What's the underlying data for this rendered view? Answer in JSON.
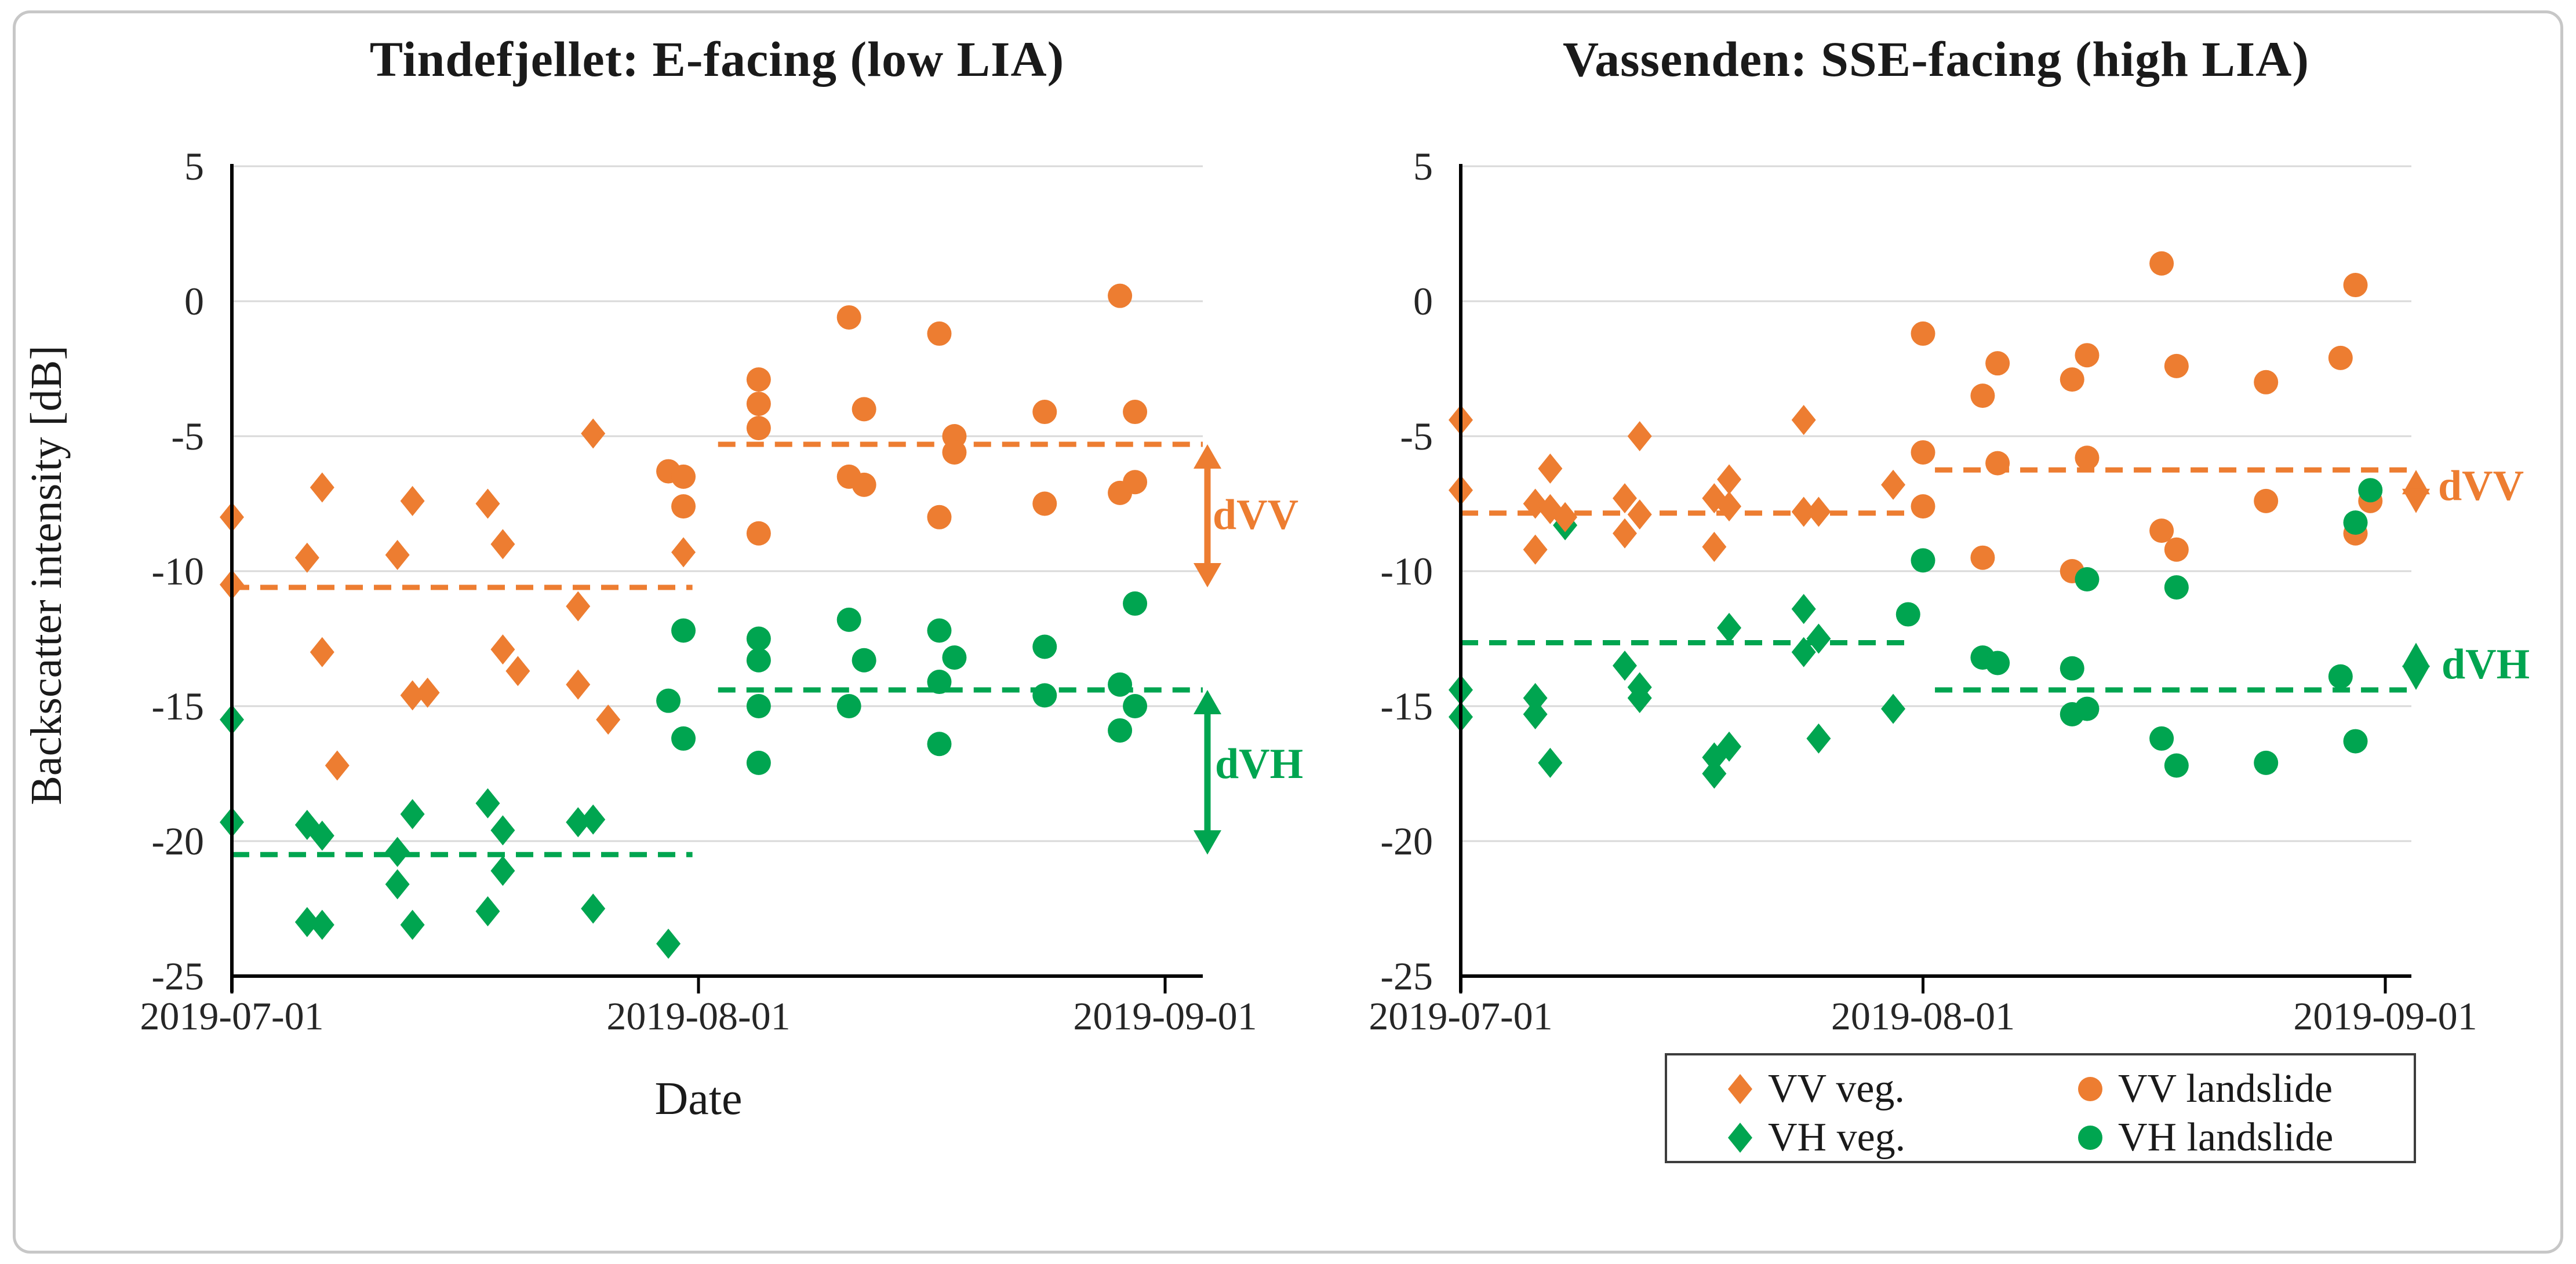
{
  "figure": {
    "left_title": "Tindefjellet: E-facing (low LIA)",
    "right_title": "Vassenden: SSE-facing (high LIA)",
    "y_axis_title": "Backscatter intensity [dB]",
    "x_axis_title": "Date",
    "colors": {
      "orange_vv": "#ED7D31",
      "green_vh": "#00A550",
      "gridline": "#D9D9D9",
      "axis": "#000000"
    }
  },
  "legend": {
    "items": [
      {
        "label": "VV veg.",
        "marker": "diamond",
        "color": "#ED7D31"
      },
      {
        "label": "VV landslide",
        "marker": "circle",
        "color": "#ED7D31"
      },
      {
        "label": "VH veg.",
        "marker": "diamond",
        "color": "#00A550"
      },
      {
        "label": "VH landslide",
        "marker": "circle",
        "color": "#00A550"
      }
    ]
  },
  "annotations": {
    "left_dvv": "dVV",
    "left_dvh": "dVH",
    "right_dvv": "dVV",
    "right_dvh": "dVH"
  },
  "chart_data": [
    {
      "type": "scatter",
      "title": "Tindefjellet: E-facing (low LIA)",
      "xlabel": "Date",
      "ylabel": "Backscatter intensity [dB]",
      "x_note": "day offsets from 2019-07-01",
      "x_ticks": [
        "2019-07-01",
        "2019-08-01",
        "2019-09-01"
      ],
      "x_tick_days": [
        0,
        31,
        62
      ],
      "y_ticks": [
        "5",
        "0",
        "-5",
        "-10",
        "-15",
        "-20",
        "-25"
      ],
      "y_tick_values": [
        5,
        0,
        -5,
        -10,
        -15,
        -20,
        -25
      ],
      "ylim": [
        -25,
        5
      ],
      "xlim_days": [
        0,
        64.5
      ],
      "grid": true,
      "series": [
        {
          "name": "VH veg.",
          "marker": "diamond",
          "color": "#00A550",
          "points": [
            [
              0,
              -15.5
            ],
            [
              0,
              -19.3
            ],
            [
              5,
              -19.4
            ],
            [
              6,
              -19.8
            ],
            [
              5,
              -23.0
            ],
            [
              6,
              -23.1
            ],
            [
              11,
              -20.4
            ],
            [
              11,
              -21.6
            ],
            [
              12,
              -19.0
            ],
            [
              12,
              -23.1
            ],
            [
              17,
              -18.6
            ],
            [
              18,
              -19.6
            ],
            [
              18,
              -21.1
            ],
            [
              17,
              -22.6
            ],
            [
              23,
              -19.3
            ],
            [
              24,
              -19.2
            ],
            [
              24,
              -22.5
            ],
            [
              29,
              -23.8
            ]
          ]
        },
        {
          "name": "VV veg.",
          "marker": "diamond",
          "color": "#ED7D31",
          "points": [
            [
              0,
              -8.0
            ],
            [
              0,
              -10.5
            ],
            [
              5,
              -9.5
            ],
            [
              6,
              -13.0
            ],
            [
              6,
              -6.9
            ],
            [
              7,
              -17.2
            ],
            [
              11,
              -9.4
            ],
            [
              12,
              -14.6
            ],
            [
              12,
              -7.4
            ],
            [
              13,
              -14.5
            ],
            [
              17,
              -7.5
            ],
            [
              18,
              -9.0
            ],
            [
              18,
              -12.9
            ],
            [
              19,
              -13.7
            ],
            [
              23,
              -11.3
            ],
            [
              23,
              -14.2
            ],
            [
              24,
              -4.9
            ],
            [
              25,
              -15.5
            ],
            [
              30,
              -9.3
            ]
          ]
        },
        {
          "name": "VV landslide",
          "marker": "circle",
          "color": "#ED7D31",
          "points": [
            [
              29,
              -6.3
            ],
            [
              30,
              -6.5
            ],
            [
              30,
              -7.6
            ],
            [
              35,
              -2.9
            ],
            [
              35,
              -3.8
            ],
            [
              35,
              -4.7
            ],
            [
              35,
              -8.6
            ],
            [
              41,
              -0.6
            ],
            [
              41,
              -6.5
            ],
            [
              42,
              -4.0
            ],
            [
              42,
              -6.8
            ],
            [
              47,
              -1.2
            ],
            [
              47,
              -8.0
            ],
            [
              48,
              -5.0
            ],
            [
              48,
              -5.6
            ],
            [
              54,
              -4.1
            ],
            [
              54,
              -7.5
            ],
            [
              59,
              0.2
            ],
            [
              59,
              -7.1
            ],
            [
              60,
              -4.1
            ],
            [
              60,
              -6.7
            ]
          ]
        },
        {
          "name": "VH landslide",
          "marker": "circle",
          "color": "#00A550",
          "points": [
            [
              29,
              -14.8
            ],
            [
              30,
              -12.2
            ],
            [
              30,
              -16.2
            ],
            [
              35,
              -12.5
            ],
            [
              35,
              -13.3
            ],
            [
              35,
              -15.0
            ],
            [
              35,
              -17.1
            ],
            [
              41,
              -11.8
            ],
            [
              41,
              -15.0
            ],
            [
              42,
              -13.3
            ],
            [
              47,
              -12.2
            ],
            [
              47,
              -14.1
            ],
            [
              47,
              -16.4
            ],
            [
              48,
              -13.2
            ],
            [
              54,
              -12.8
            ],
            [
              54,
              -14.6
            ],
            [
              59,
              -14.2
            ],
            [
              59,
              -15.9
            ],
            [
              60,
              -11.2
            ],
            [
              60,
              -15.0
            ]
          ]
        }
      ],
      "mean_lines": [
        {
          "series": "VV",
          "color": "#ED7D31",
          "segments": [
            {
              "days": [
                0,
                30.6
              ],
              "value": -10.6
            },
            {
              "days": [
                32.3,
                64.5
              ],
              "value": -5.3
            }
          ]
        },
        {
          "series": "VH",
          "color": "#00A550",
          "segments": [
            {
              "days": [
                0,
                30.6
              ],
              "value": -20.5
            },
            {
              "days": [
                32.3,
                64.5
              ],
              "value": -14.4
            }
          ]
        }
      ],
      "arrows": [
        {
          "label": "dVV",
          "color": "#ED7D31",
          "from_value": -5.3,
          "to_value": -10.6
        },
        {
          "label": "dVH",
          "color": "#00A550",
          "from_value": -14.4,
          "to_value": -20.5
        }
      ]
    },
    {
      "type": "scatter",
      "title": "Vassenden: SSE-facing (high LIA)",
      "xlabel": "",
      "ylabel": "",
      "x_note": "day offsets from 2019-07-01",
      "x_ticks": [
        "2019-07-01",
        "2019-08-01",
        "2019-09-01"
      ],
      "x_tick_days": [
        0,
        31,
        62
      ],
      "y_ticks": [
        "5",
        "0",
        "-5",
        "-10",
        "-15",
        "-20",
        "-25"
      ],
      "y_tick_values": [
        5,
        0,
        -5,
        -10,
        -15,
        -20,
        -25
      ],
      "ylim": [
        -25,
        5
      ],
      "xlim_days": [
        0,
        63.8
      ],
      "grid": true,
      "series": [
        {
          "name": "VH veg.",
          "marker": "diamond",
          "color": "#00A550",
          "points": [
            [
              0,
              -14.4
            ],
            [
              0,
              -15.4
            ],
            [
              5,
              -14.7
            ],
            [
              5,
              -15.3
            ],
            [
              6,
              -17.1
            ],
            [
              7,
              -8.3
            ],
            [
              11,
              -13.5
            ],
            [
              12,
              -14.3
            ],
            [
              12,
              -14.7
            ],
            [
              18,
              -12.1
            ],
            [
              17,
              -16.9
            ],
            [
              18,
              -16.5
            ],
            [
              17,
              -17.5
            ],
            [
              23,
              -11.4
            ],
            [
              23,
              -13.0
            ],
            [
              24,
              -12.5
            ],
            [
              24,
              -16.2
            ],
            [
              29,
              -15.1
            ]
          ]
        },
        {
          "name": "VV veg.",
          "marker": "diamond",
          "color": "#ED7D31",
          "points": [
            [
              0,
              -4.4
            ],
            [
              0,
              -7.0
            ],
            [
              6,
              -6.2
            ],
            [
              5,
              -7.5
            ],
            [
              6,
              -7.7
            ],
            [
              7,
              -8.0
            ],
            [
              5,
              -9.2
            ],
            [
              12,
              -5.0
            ],
            [
              11,
              -7.3
            ],
            [
              12,
              -7.9
            ],
            [
              11,
              -8.6
            ],
            [
              17,
              -7.3
            ],
            [
              18,
              -6.6
            ],
            [
              18,
              -7.6
            ],
            [
              17,
              -9.1
            ],
            [
              23,
              -4.4
            ],
            [
              23,
              -7.8
            ],
            [
              24,
              -7.8
            ],
            [
              29,
              -6.8
            ]
          ]
        },
        {
          "name": "VV landslide",
          "marker": "circle",
          "color": "#ED7D31",
          "points": [
            [
              31,
              -1.2
            ],
            [
              31,
              -5.6
            ],
            [
              31,
              -7.6
            ],
            [
              35,
              -3.5
            ],
            [
              36,
              -2.3
            ],
            [
              36,
              -6.0
            ],
            [
              35,
              -9.5
            ],
            [
              41,
              -2.9
            ],
            [
              42,
              -2.0
            ],
            [
              42,
              -5.8
            ],
            [
              41,
              -10.0
            ],
            [
              47,
              1.4
            ],
            [
              47,
              -8.5
            ],
            [
              48,
              -2.4
            ],
            [
              48,
              -9.2
            ],
            [
              54,
              -3.0
            ],
            [
              54,
              -7.4
            ],
            [
              59,
              -2.1
            ],
            [
              60,
              0.6
            ],
            [
              60,
              -8.6
            ],
            [
              61,
              -7.4
            ]
          ]
        },
        {
          "name": "VH landslide",
          "marker": "circle",
          "color": "#00A550",
          "points": [
            [
              30,
              -11.6
            ],
            [
              31,
              -9.6
            ],
            [
              35,
              -13.2
            ],
            [
              36,
              -13.4
            ],
            [
              41,
              -15.3
            ],
            [
              42,
              -15.1
            ],
            [
              41,
              -13.6
            ],
            [
              42,
              -10.3
            ],
            [
              47,
              -16.2
            ],
            [
              48,
              -10.6
            ],
            [
              48,
              -17.2
            ],
            [
              54,
              -17.1
            ],
            [
              59,
              -13.9
            ],
            [
              60,
              -16.3
            ],
            [
              60,
              -8.2
            ],
            [
              61,
              -7.0
            ]
          ]
        }
      ],
      "mean_lines": [
        {
          "series": "VV",
          "color": "#ED7D31",
          "segments": [
            {
              "days": [
                0,
                30.2
              ],
              "value": -7.85
            },
            {
              "days": [
                31.8,
                63.8
              ],
              "value": -6.25
            }
          ]
        },
        {
          "series": "VH",
          "color": "#00A550",
          "segments": [
            {
              "days": [
                0,
                30.2
              ],
              "value": -12.65
            },
            {
              "days": [
                31.8,
                63.8
              ],
              "value": -14.4
            }
          ]
        }
      ],
      "arrows": [
        {
          "label": "dVV",
          "color": "#ED7D31",
          "from_value": -6.25,
          "to_value": -7.85
        },
        {
          "label": "dVH",
          "color": "#00A550",
          "from_value": -12.65,
          "to_value": -14.4
        }
      ]
    }
  ]
}
